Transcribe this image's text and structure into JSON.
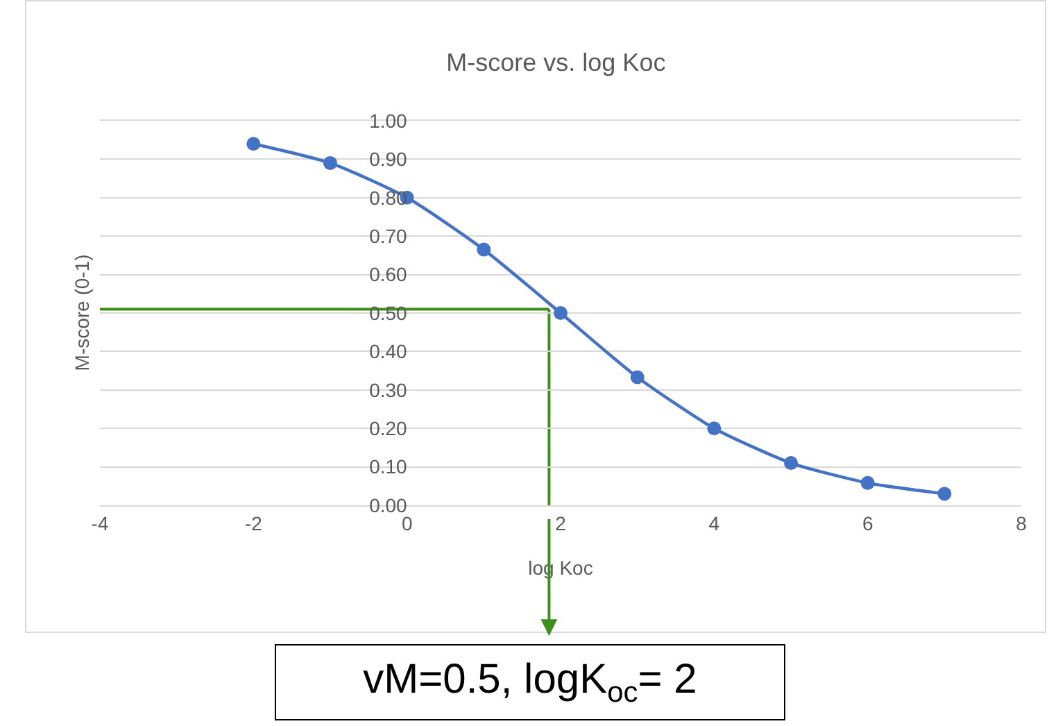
{
  "chart_data": {
    "type": "line",
    "title": "M-score vs. log Koc",
    "xlabel": "log Koc",
    "ylabel": "M-score (0-1)",
    "x": [
      -2,
      -1,
      0,
      1,
      2,
      3,
      4,
      5,
      6,
      7
    ],
    "series": [
      {
        "color": "#4472c4",
        "values": [
          0.94,
          0.89,
          0.8,
          0.665,
          0.5,
          0.333,
          0.2,
          0.11,
          0.058,
          0.03
        ]
      }
    ],
    "xlim": [
      -4,
      8
    ],
    "xticks": [
      -4,
      -2,
      0,
      2,
      4,
      6,
      8
    ],
    "ylim": [
      0,
      1
    ],
    "yticks": [
      {
        "value": 0,
        "label": "0.00"
      },
      {
        "value": 0.1,
        "label": "0.10"
      },
      {
        "value": 0.2,
        "label": "0.20"
      },
      {
        "value": 0.3,
        "label": "0.30"
      },
      {
        "value": 0.4,
        "label": "0.40"
      },
      {
        "value": 0.5,
        "label": "0.50"
      },
      {
        "value": 0.6,
        "label": "0.60"
      },
      {
        "value": 0.7,
        "label": "0.70"
      },
      {
        "value": 0.8,
        "label": "0.80"
      },
      {
        "value": 0.9,
        "label": "0.90"
      },
      {
        "value": 1,
        "label": "1.00"
      }
    ],
    "grid": "y",
    "marker": "circle",
    "line_style": "solid",
    "ref_lines": [
      {
        "axis": "y",
        "value": 0.51,
        "color": "#3f8f1f"
      },
      {
        "axis": "x",
        "value": 1.85,
        "color": "#3f8f1f"
      }
    ],
    "annotations": [
      "vM=0.5, logK$_{oc}$= 2"
    ]
  }
}
